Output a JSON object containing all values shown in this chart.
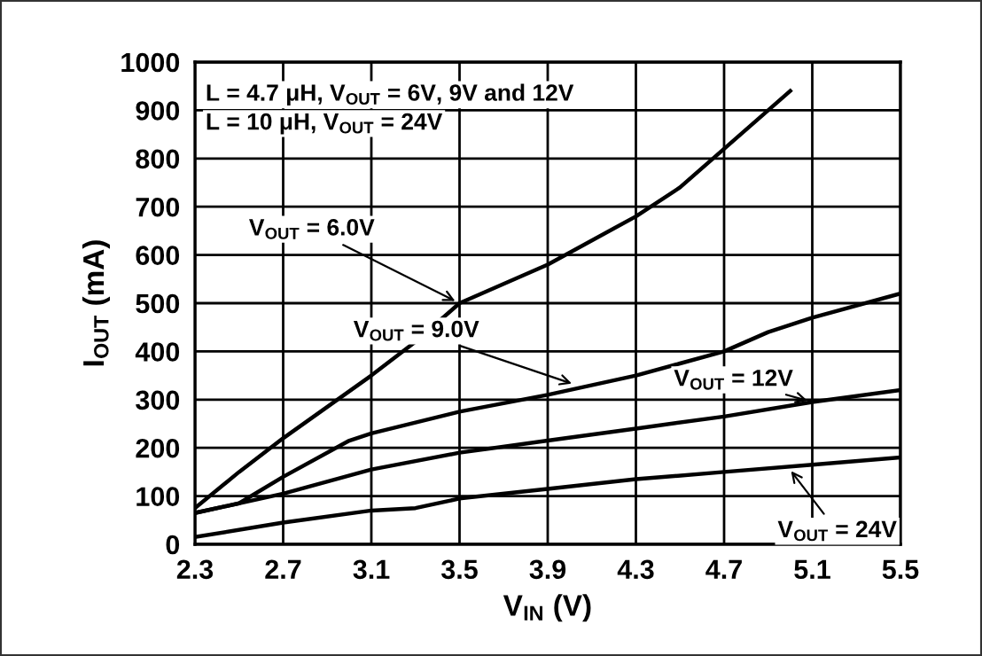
{
  "chart_data": {
    "type": "line",
    "xlabel": "V$_{IN}$ (V)",
    "ylabel": "I$_{OUT}$ (mA)",
    "xlim": [
      2.3,
      5.5
    ],
    "xticks": [
      2.3,
      2.7,
      3.1,
      3.5,
      3.9,
      4.3,
      4.7,
      5.1,
      5.5
    ],
    "ylim": [
      0,
      1000
    ],
    "yticks": [
      0,
      100,
      200,
      300,
      400,
      500,
      600,
      700,
      800,
      900,
      1000
    ],
    "grid": true,
    "legend": false,
    "marker": "none",
    "line_style": "solid",
    "series": [
      {
        "color": "#000000",
        "x": [
          2.3,
          2.5,
          2.7,
          3.1,
          3.3,
          3.5,
          3.9,
          4.3,
          4.5,
          4.7,
          4.9,
          5.0
        ],
        "values": [
          75,
          150,
          220,
          350,
          420,
          500,
          580,
          680,
          740,
          820,
          900,
          940
        ]
      },
      {
        "color": "#000000",
        "x": [
          2.3,
          2.5,
          2.7,
          3.0,
          3.1,
          3.5,
          3.9,
          4.3,
          4.5,
          4.7,
          4.9,
          5.1,
          5.5
        ],
        "values": [
          65,
          85,
          140,
          215,
          230,
          275,
          310,
          350,
          375,
          400,
          440,
          470,
          520
        ]
      },
      {
        "color": "#000000",
        "x": [
          2.3,
          2.7,
          3.1,
          3.5,
          3.9,
          4.3,
          4.7,
          5.1,
          5.5
        ],
        "values": [
          65,
          105,
          155,
          190,
          215,
          240,
          265,
          295,
          320
        ]
      },
      {
        "color": "#000000",
        "x": [
          2.3,
          2.7,
          3.1,
          3.3,
          3.5,
          3.9,
          4.3,
          4.7,
          5.1,
          5.5
        ],
        "values": [
          15,
          45,
          70,
          75,
          95,
          115,
          135,
          150,
          165,
          180
        ]
      }
    ],
    "annotations": [
      "L = 4.7 μH, V$_{OUT}$ = 6V, 9V and 12V",
      "L = 10 μH, V$_{OUT}$ = 24V",
      {
        "text": "V$_{OUT}$ = 6.0V",
        "x": 3.5,
        "y": 500
      },
      {
        "text": "V$_{OUT}$ = 9.0V",
        "x": 4.03,
        "y": 330
      },
      {
        "text": "V$_{OUT}$ = 12V",
        "x": 5.1,
        "y": 295
      },
      {
        "text": "V$_{OUT}$ = 24V",
        "x": 4.99,
        "y": 160
      }
    ]
  }
}
